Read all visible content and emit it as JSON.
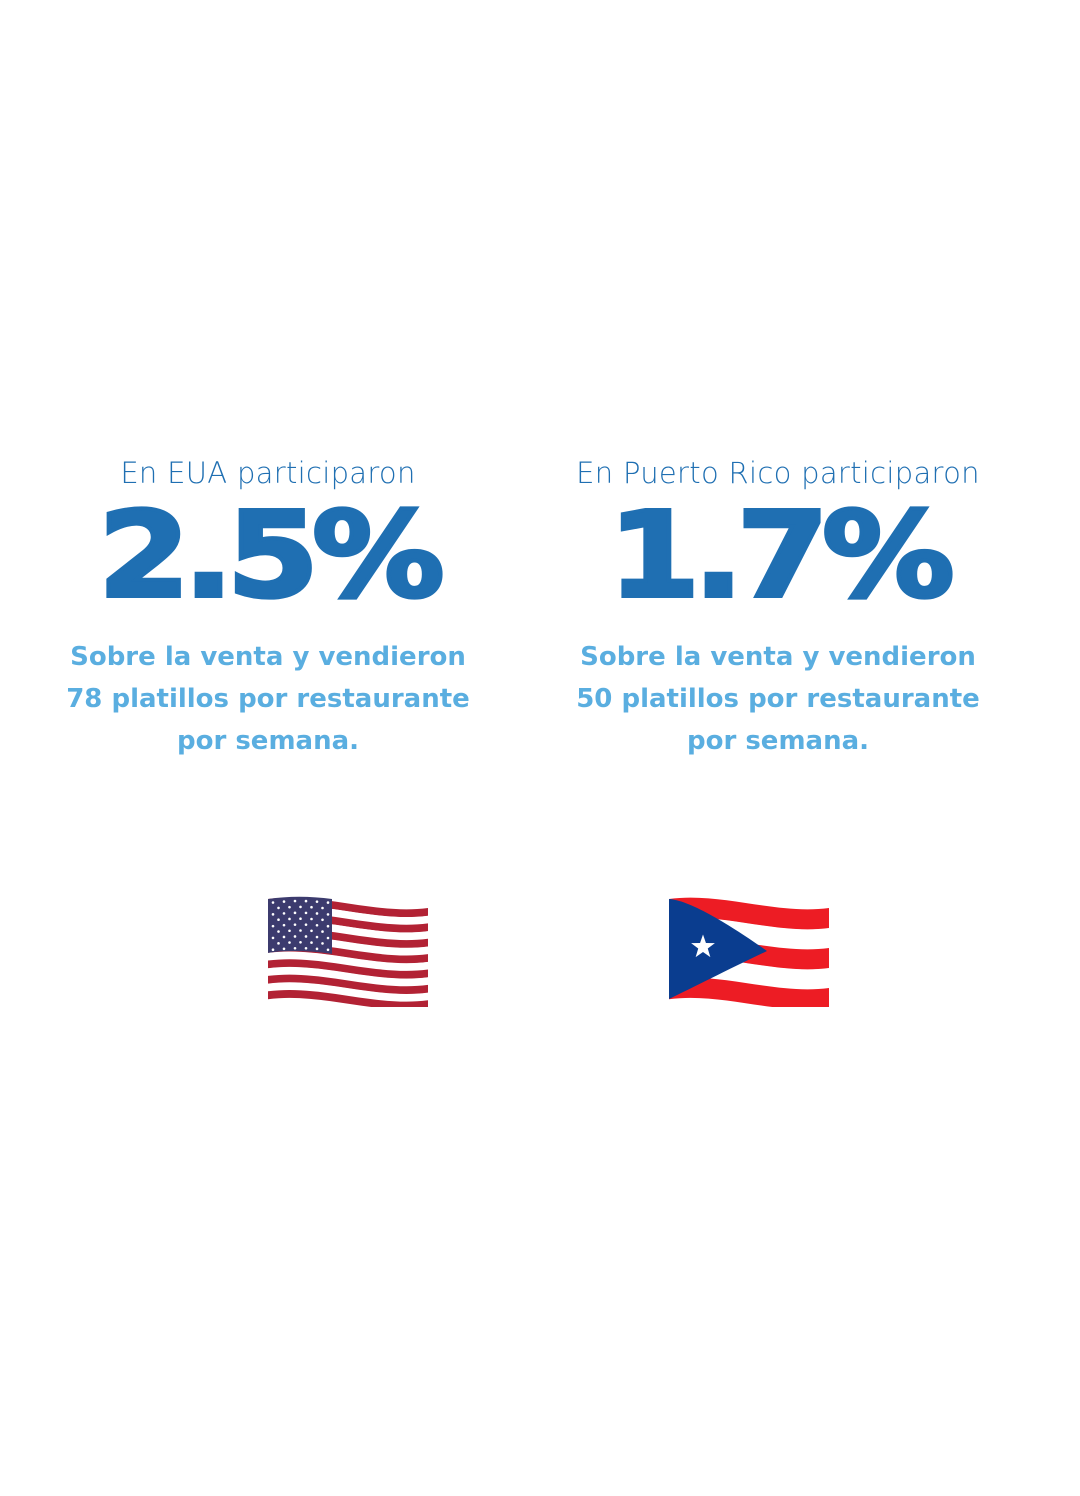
{
  "stats": [
    {
      "label": "En EUA participaron",
      "value": "2.5%",
      "description": [
        "Sobre la venta y vendieron",
        "78 platillos por restaurante",
        "por semana."
      ]
    },
    {
      "label": "En Puerto Rico participaron",
      "value": "1.7%",
      "description": [
        "Sobre la venta y vendieron",
        "50 platillos por restaurante",
        "por semana."
      ]
    }
  ]
}
